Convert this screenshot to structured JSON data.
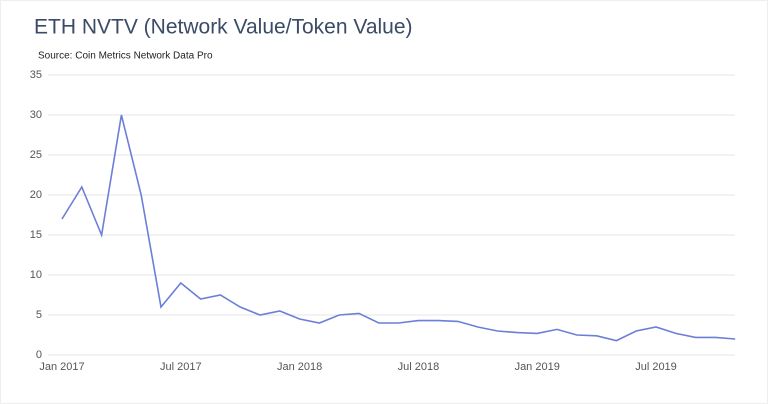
{
  "chart_data": {
    "type": "line",
    "title": "ETH NVTV (Network Value/Token Value)",
    "subtitle": "Source: Coin Metrics Network Data Pro",
    "x": [
      "2017-01",
      "2017-02",
      "2017-03",
      "2017-04",
      "2017-05",
      "2017-06",
      "2017-07",
      "2017-08",
      "2017-09",
      "2017-10",
      "2017-11",
      "2017-12",
      "2018-01",
      "2018-02",
      "2018-03",
      "2018-04",
      "2018-05",
      "2018-06",
      "2018-07",
      "2018-08",
      "2018-09",
      "2018-10",
      "2018-11",
      "2018-12",
      "2019-01",
      "2019-02",
      "2019-03",
      "2019-04",
      "2019-05",
      "2019-06",
      "2019-07",
      "2019-08",
      "2019-09",
      "2019-10",
      "2019-11"
    ],
    "series": [
      {
        "name": "NVTV",
        "color": "#6b7fd7",
        "values": [
          17,
          21,
          15,
          30,
          20,
          6,
          9,
          7,
          7.5,
          6,
          5,
          5.5,
          4.5,
          4,
          5,
          5.2,
          4,
          4,
          4.3,
          4.3,
          4.2,
          3.5,
          3,
          2.8,
          2.7,
          3.2,
          2.5,
          2.4,
          1.8,
          3,
          3.5,
          2.7,
          2.2,
          2.2,
          2
        ]
      }
    ],
    "ylim": [
      0,
      35
    ],
    "yticks": [
      0,
      5,
      10,
      15,
      20,
      25,
      30,
      35
    ],
    "xticks": [
      {
        "value": "2017-01",
        "label": "Jan 2017"
      },
      {
        "value": "2017-07",
        "label": "Jul 2017"
      },
      {
        "value": "2018-01",
        "label": "Jan 2018"
      },
      {
        "value": "2018-07",
        "label": "Jul 2018"
      },
      {
        "value": "2019-01",
        "label": "Jan 2019"
      },
      {
        "value": "2019-07",
        "label": "Jul 2019"
      }
    ],
    "grid": true
  }
}
